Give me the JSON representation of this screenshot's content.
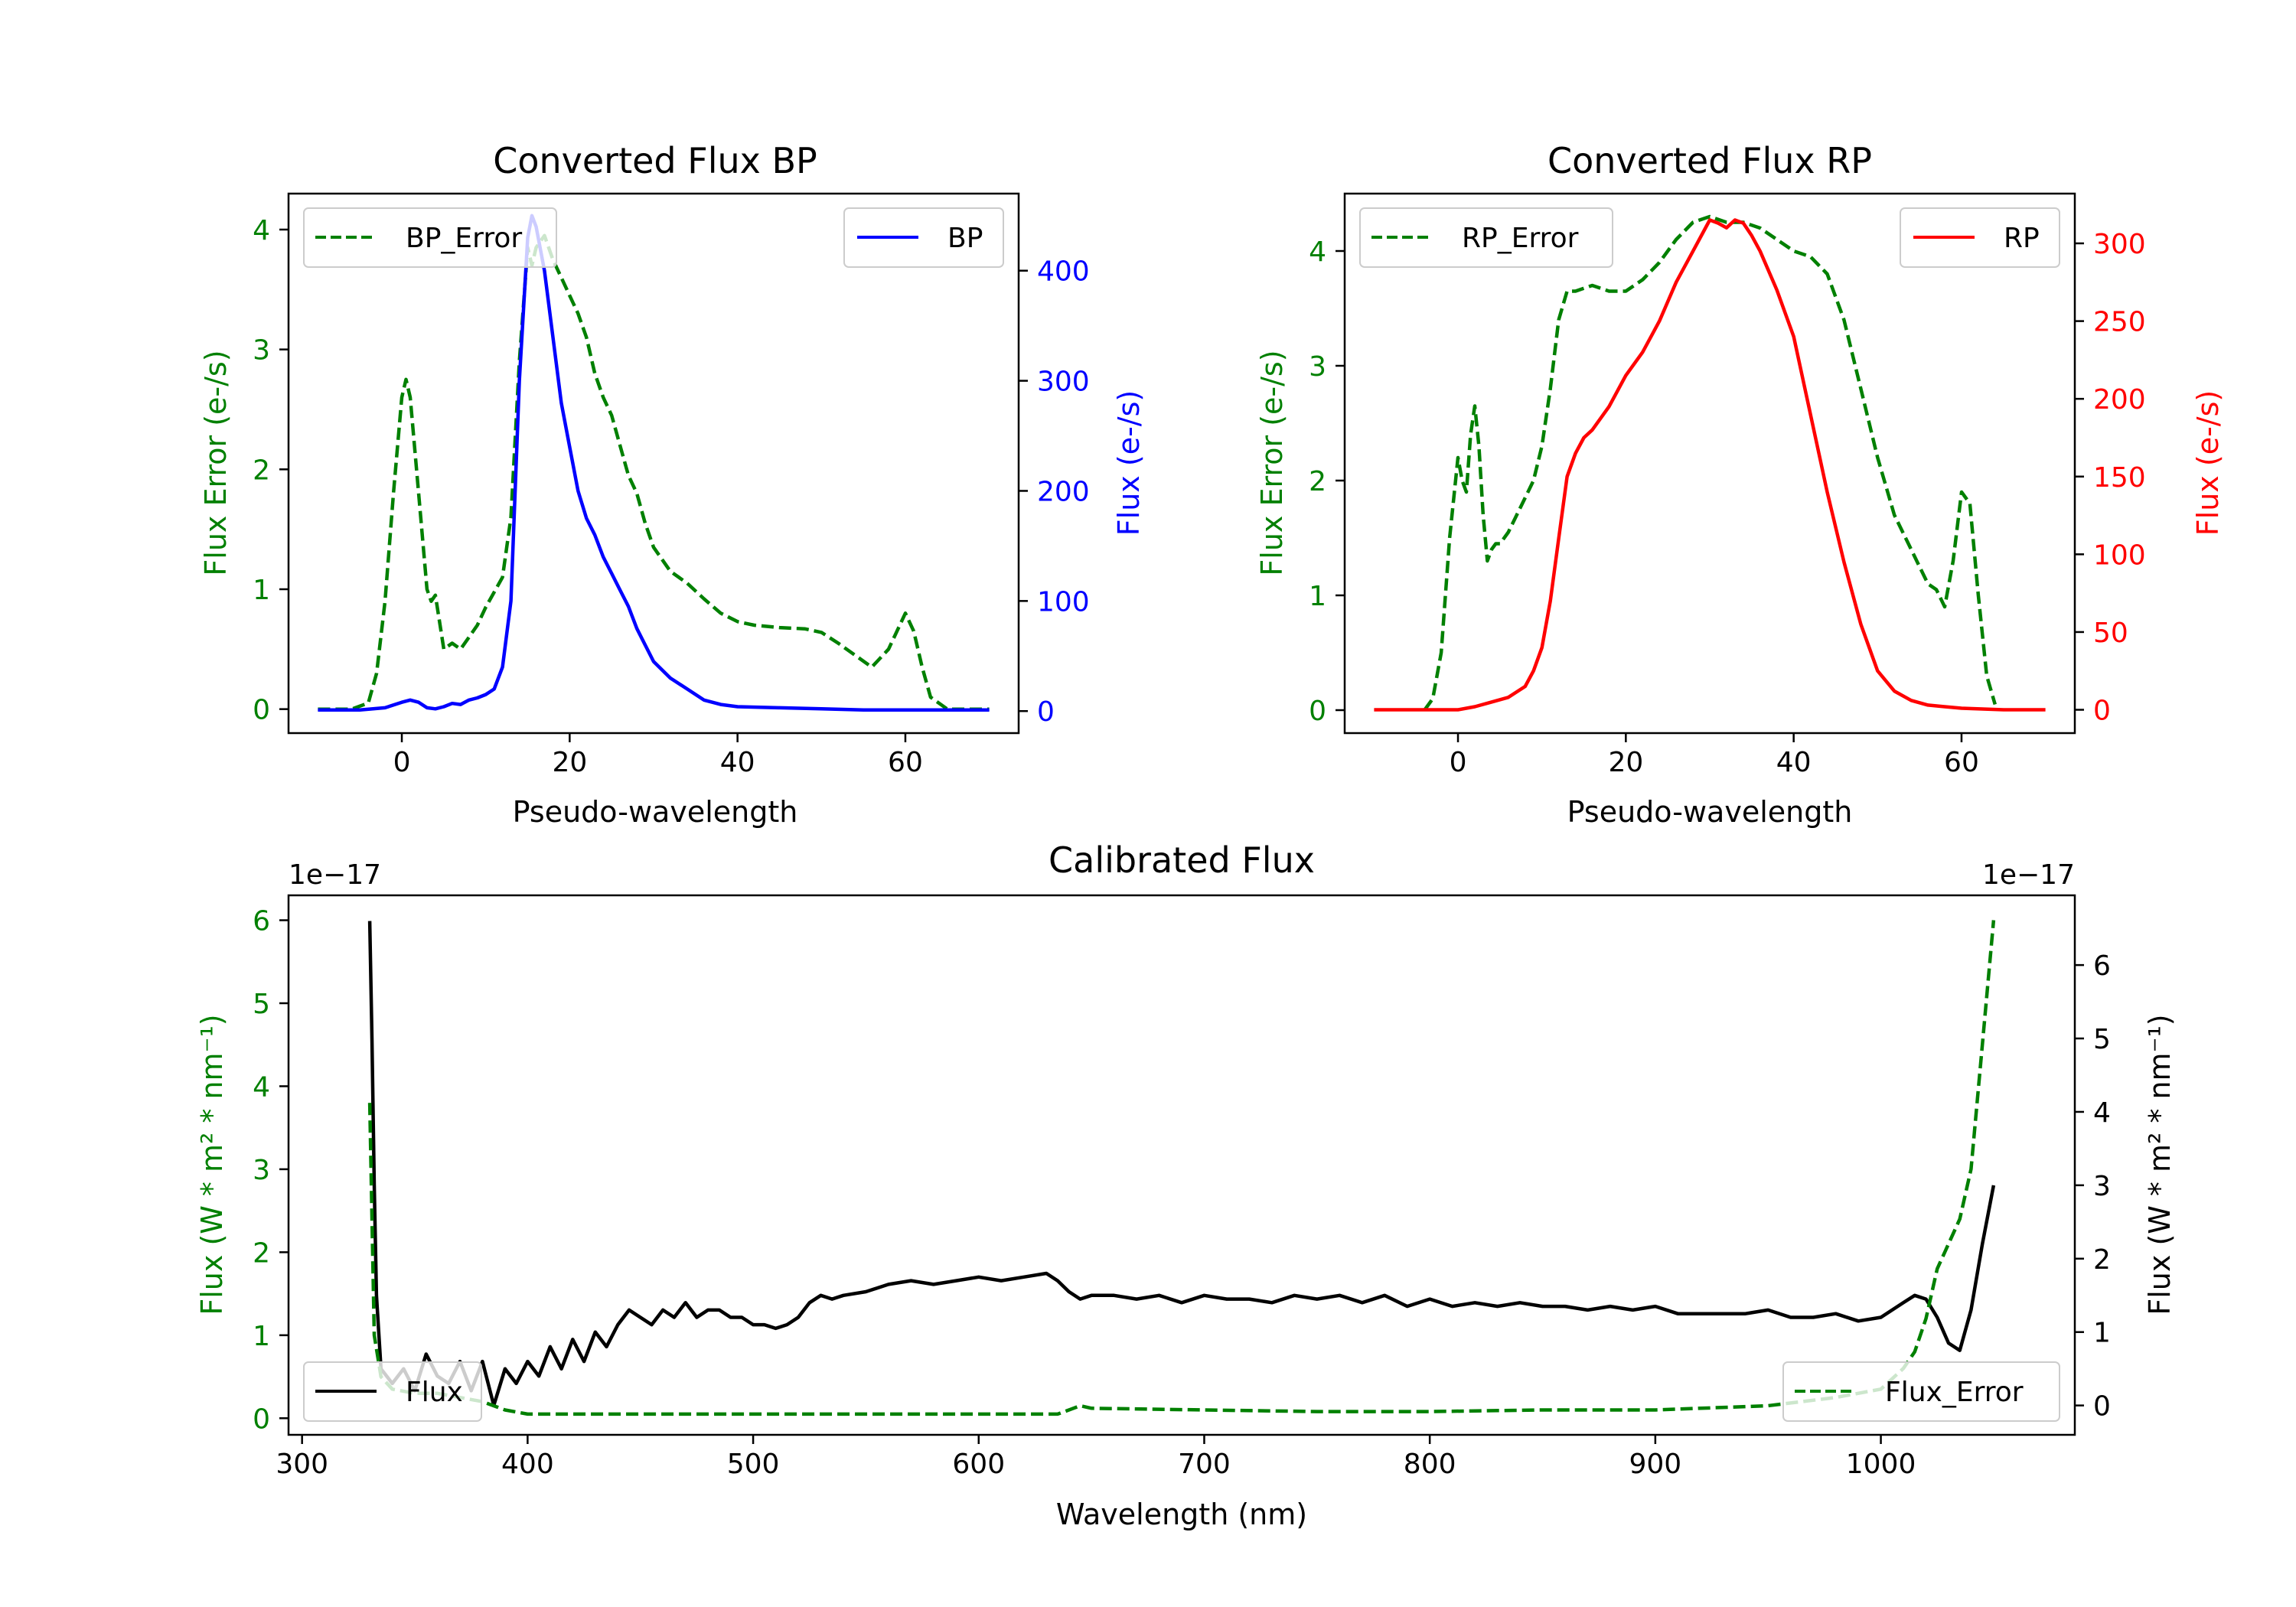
{
  "chart_data": [
    {
      "id": "bp",
      "type": "line",
      "title": "Converted Flux BP",
      "xlabel": "Pseudo-wavelength",
      "ylabel_left": "Flux Error (e-/s)",
      "ylabel_right": "Flux (e-/s)",
      "xlim": [
        -13.5,
        73.5
      ],
      "ylim_left": [
        -0.2,
        4.3
      ],
      "ylim_right": [
        -20,
        470
      ],
      "xticks": [
        0,
        20,
        40,
        60
      ],
      "yticks_left": [
        0,
        1,
        2,
        3,
        4
      ],
      "yticks_right": [
        0,
        100,
        200,
        300,
        400
      ],
      "left_color": "#008000",
      "right_color": "#0000ff",
      "legend_left": "BP_Error",
      "legend_right": "BP",
      "series": [
        {
          "name": "BP_Error",
          "axis": "left",
          "style": "dashed",
          "color": "#008000",
          "x": [
            -10,
            -6,
            -4,
            -3,
            -2,
            -1,
            0,
            0.5,
            1,
            2,
            3,
            3.5,
            4,
            5,
            6,
            7,
            8,
            9,
            10,
            12,
            13,
            14,
            15,
            15.5,
            16,
            17,
            18,
            19,
            20,
            21,
            22,
            23,
            24,
            25,
            26,
            27,
            28,
            29,
            30,
            32,
            34,
            36,
            38,
            40,
            42,
            45,
            48,
            50,
            52,
            54,
            56,
            58,
            59,
            60,
            61,
            62,
            63,
            65,
            70
          ],
          "y": [
            0,
            0,
            0.05,
            0.3,
            0.9,
            1.8,
            2.6,
            2.75,
            2.6,
            1.8,
            1.0,
            0.9,
            0.95,
            0.5,
            0.55,
            0.5,
            0.6,
            0.7,
            0.85,
            1.1,
            1.6,
            2.9,
            3.85,
            3.7,
            3.85,
            3.95,
            3.75,
            3.6,
            3.45,
            3.3,
            3.1,
            2.8,
            2.6,
            2.45,
            2.2,
            1.95,
            1.8,
            1.55,
            1.35,
            1.15,
            1.05,
            0.92,
            0.8,
            0.73,
            0.7,
            0.68,
            0.67,
            0.64,
            0.55,
            0.45,
            0.35,
            0.5,
            0.65,
            0.8,
            0.65,
            0.35,
            0.1,
            0,
            0
          ]
        },
        {
          "name": "BP",
          "axis": "right",
          "style": "solid",
          "color": "#0000ff",
          "x": [
            -10,
            -5,
            -2,
            0,
            1,
            2,
            3,
            4,
            5,
            6,
            7,
            8,
            9,
            10,
            11,
            12,
            13,
            14,
            15,
            15.5,
            16,
            17,
            18,
            19,
            20,
            21,
            22,
            23,
            24,
            25,
            26,
            27,
            28,
            29,
            30,
            32,
            34,
            36,
            38,
            40,
            45,
            50,
            55,
            60,
            65,
            70
          ],
          "y": [
            1,
            1,
            3,
            8,
            10,
            8,
            3,
            2,
            4,
            7,
            6,
            10,
            12,
            15,
            20,
            40,
            100,
            300,
            430,
            450,
            440,
            400,
            340,
            280,
            240,
            200,
            175,
            160,
            140,
            125,
            110,
            95,
            75,
            60,
            45,
            30,
            20,
            10,
            6,
            4,
            3,
            2,
            1,
            1,
            1,
            1
          ]
        }
      ]
    },
    {
      "id": "rp",
      "type": "line",
      "title": "Converted Flux RP",
      "xlabel": "Pseudo-wavelength",
      "ylabel_left": "Flux Error (e-/s)",
      "ylabel_right": "Flux (e-/s)",
      "xlim": [
        -13.5,
        73.5
      ],
      "ylim_left": [
        -0.2,
        4.5
      ],
      "ylim_right": [
        -15,
        332
      ],
      "xticks": [
        0,
        20,
        40,
        60
      ],
      "yticks_left": [
        0,
        1,
        2,
        3,
        4
      ],
      "yticks_right": [
        0,
        50,
        100,
        150,
        200,
        250,
        300
      ],
      "left_color": "#008000",
      "right_color": "#ff0000",
      "legend_left": "RP_Error",
      "legend_right": "RP",
      "series": [
        {
          "name": "RP_Error",
          "axis": "left",
          "style": "dashed",
          "color": "#008000",
          "x": [
            -4,
            -3,
            -2,
            -1,
            0,
            0.5,
            1,
            1.5,
            2,
            2.5,
            3,
            3.5,
            4,
            4.5,
            5,
            6,
            7,
            8,
            9,
            10,
            11,
            12,
            13,
            14,
            16,
            18,
            20,
            22,
            24,
            26,
            28,
            30,
            32,
            34,
            36,
            38,
            40,
            42,
            44,
            46,
            48,
            50,
            52,
            54,
            55,
            56,
            57,
            58,
            59,
            60,
            61,
            62,
            63,
            64
          ],
          "y": [
            0,
            0.1,
            0.5,
            1.5,
            2.2,
            2.0,
            1.9,
            2.4,
            2.65,
            2.3,
            1.7,
            1.3,
            1.4,
            1.45,
            1.45,
            1.55,
            1.7,
            1.85,
            2.0,
            2.3,
            2.8,
            3.4,
            3.65,
            3.65,
            3.7,
            3.65,
            3.65,
            3.75,
            3.9,
            4.1,
            4.25,
            4.3,
            4.25,
            4.25,
            4.2,
            4.1,
            4.0,
            3.95,
            3.8,
            3.4,
            2.8,
            2.2,
            1.7,
            1.4,
            1.25,
            1.1,
            1.05,
            0.9,
            1.3,
            1.9,
            1.8,
            1.0,
            0.3,
            0.05
          ]
        },
        {
          "name": "RP",
          "axis": "right",
          "style": "solid",
          "color": "#ff0000",
          "x": [
            -10,
            -5,
            0,
            2,
            4,
            6,
            8,
            9,
            10,
            11,
            12,
            13,
            14,
            15,
            16,
            18,
            20,
            22,
            24,
            26,
            28,
            30,
            31,
            32,
            33,
            34,
            35,
            36,
            38,
            40,
            42,
            44,
            46,
            48,
            50,
            52,
            54,
            56,
            58,
            60,
            65,
            70
          ],
          "y": [
            0,
            0,
            0,
            2,
            5,
            8,
            15,
            25,
            40,
            70,
            110,
            150,
            165,
            175,
            180,
            195,
            215,
            230,
            250,
            275,
            295,
            315,
            313,
            310,
            315,
            313,
            305,
            295,
            270,
            240,
            190,
            140,
            95,
            55,
            25,
            12,
            6,
            3,
            2,
            1,
            0,
            0
          ]
        }
      ]
    },
    {
      "id": "calibrated",
      "type": "line",
      "title": "Calibrated Flux",
      "xlabel": "Wavelength (nm)",
      "ylabel_left": "Flux (W * m² * nm⁻¹)",
      "ylabel_right": "Flux (W * m² * nm⁻¹)",
      "offset_left": "1e−17",
      "offset_right": "1e−17",
      "xlim": [
        294,
        1086
      ],
      "ylim_left": [
        -0.2,
        6.3
      ],
      "ylim_right": [
        -0.4,
        6.95
      ],
      "xticks": [
        300,
        400,
        500,
        600,
        700,
        800,
        900,
        1000
      ],
      "yticks_left": [
        0,
        1,
        2,
        3,
        4,
        5,
        6
      ],
      "yticks_right": [
        0,
        1,
        2,
        3,
        4,
        5,
        6
      ],
      "left_color": "#008000",
      "right_color": "#000000",
      "legend_left": "Flux",
      "legend_right": "Flux_Error",
      "series": [
        {
          "name": "Flux",
          "axis": "right",
          "style": "solid",
          "color": "#000000",
          "x": [
            330,
            331,
            332,
            333,
            335,
            340,
            345,
            350,
            355,
            360,
            365,
            370,
            375,
            380,
            385,
            390,
            395,
            400,
            405,
            410,
            415,
            420,
            425,
            430,
            435,
            440,
            445,
            450,
            455,
            460,
            465,
            470,
            475,
            480,
            485,
            490,
            495,
            500,
            505,
            510,
            515,
            520,
            525,
            530,
            535,
            540,
            550,
            560,
            570,
            580,
            590,
            600,
            610,
            620,
            630,
            635,
            640,
            645,
            650,
            660,
            670,
            680,
            690,
            700,
            710,
            720,
            730,
            740,
            750,
            760,
            770,
            780,
            790,
            800,
            810,
            820,
            830,
            840,
            850,
            860,
            870,
            880,
            890,
            900,
            910,
            920,
            930,
            940,
            950,
            960,
            970,
            980,
            990,
            1000,
            1010,
            1015,
            1020,
            1025,
            1030,
            1035,
            1040,
            1045,
            1050
          ],
          "y": [
            6.6,
            5.0,
            3.0,
            1.5,
            0.5,
            0.3,
            0.5,
            0.2,
            0.7,
            0.4,
            0.3,
            0.6,
            0.2,
            0.6,
            0.0,
            0.5,
            0.3,
            0.6,
            0.4,
            0.8,
            0.5,
            0.9,
            0.6,
            1.0,
            0.8,
            1.1,
            1.3,
            1.2,
            1.1,
            1.3,
            1.2,
            1.4,
            1.2,
            1.3,
            1.3,
            1.2,
            1.2,
            1.1,
            1.1,
            1.05,
            1.1,
            1.2,
            1.4,
            1.5,
            1.45,
            1.5,
            1.55,
            1.65,
            1.7,
            1.65,
            1.7,
            1.75,
            1.7,
            1.75,
            1.8,
            1.7,
            1.55,
            1.45,
            1.5,
            1.5,
            1.45,
            1.5,
            1.4,
            1.5,
            1.45,
            1.45,
            1.4,
            1.5,
            1.45,
            1.5,
            1.4,
            1.5,
            1.35,
            1.45,
            1.35,
            1.4,
            1.35,
            1.4,
            1.35,
            1.35,
            1.3,
            1.35,
            1.3,
            1.35,
            1.25,
            1.25,
            1.25,
            1.25,
            1.3,
            1.2,
            1.2,
            1.25,
            1.15,
            1.2,
            1.4,
            1.5,
            1.45,
            1.2,
            0.85,
            0.75,
            1.3,
            2.2,
            3.0
          ]
        },
        {
          "name": "Flux_Error",
          "axis": "left",
          "style": "dashed",
          "color": "#008000",
          "x": [
            330,
            332,
            335,
            340,
            350,
            360,
            370,
            380,
            390,
            400,
            420,
            450,
            500,
            550,
            600,
            635,
            640,
            645,
            650,
            700,
            750,
            800,
            850,
            900,
            950,
            980,
            1000,
            1010,
            1015,
            1020,
            1025,
            1030,
            1035,
            1040,
            1045,
            1050
          ],
          "y": [
            3.8,
            1.0,
            0.5,
            0.35,
            0.3,
            0.3,
            0.25,
            0.2,
            0.1,
            0.05,
            0.05,
            0.05,
            0.05,
            0.05,
            0.05,
            0.05,
            0.1,
            0.15,
            0.12,
            0.1,
            0.08,
            0.08,
            0.1,
            0.1,
            0.15,
            0.25,
            0.35,
            0.6,
            0.8,
            1.2,
            1.8,
            2.1,
            2.4,
            3.0,
            4.5,
            6.0
          ]
        }
      ]
    }
  ]
}
